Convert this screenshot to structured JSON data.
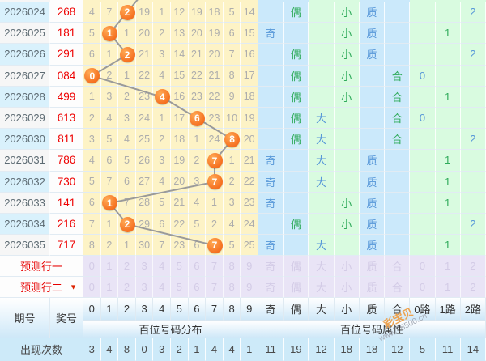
{
  "table": {
    "columns": {
      "period_label": "期号",
      "number_label": "奖号",
      "digit_labels": [
        "0",
        "1",
        "2",
        "3",
        "4",
        "5",
        "6",
        "7",
        "8",
        "9"
      ],
      "attr_labels": [
        "奇",
        "偶",
        "大",
        "小",
        "质",
        "合",
        "0路",
        "1路",
        "2路"
      ],
      "digit_span_label": "百位号码分布",
      "attr_span_label": "百位号码属性"
    },
    "prev_ball_digit": 3,
    "rows": [
      {
        "period": "2026024",
        "number": "268",
        "cells": [
          "4",
          "7",
          "2",
          "19",
          "1",
          "12",
          "19",
          "18",
          "5",
          "14"
        ],
        "attrs": [
          "",
          "偶",
          "",
          "小",
          "质",
          "",
          "",
          "",
          "2"
        ]
      },
      {
        "period": "2026025",
        "number": "181",
        "cells": [
          "5",
          "1",
          "1",
          "20",
          "2",
          "13",
          "20",
          "19",
          "6",
          "15"
        ],
        "attrs": [
          "奇",
          "",
          "",
          "小",
          "质",
          "",
          "",
          "1",
          ""
        ]
      },
      {
        "period": "2026026",
        "number": "291",
        "cells": [
          "6",
          "1",
          "2",
          "21",
          "3",
          "14",
          "21",
          "20",
          "7",
          "16"
        ],
        "attrs": [
          "",
          "偶",
          "",
          "小",
          "质",
          "",
          "",
          "",
          "2"
        ]
      },
      {
        "period": "2026027",
        "number": "084",
        "cells": [
          "0",
          "2",
          "1",
          "22",
          "4",
          "15",
          "22",
          "21",
          "8",
          "17"
        ],
        "attrs": [
          "",
          "偶",
          "",
          "小",
          "",
          "合",
          "0",
          "",
          ""
        ]
      },
      {
        "period": "2026028",
        "number": "499",
        "cells": [
          "1",
          "3",
          "2",
          "23",
          "4",
          "16",
          "23",
          "22",
          "9",
          "18"
        ],
        "attrs": [
          "",
          "偶",
          "",
          "小",
          "",
          "合",
          "",
          "1",
          ""
        ]
      },
      {
        "period": "2026029",
        "number": "613",
        "cells": [
          "2",
          "4",
          "3",
          "24",
          "1",
          "17",
          "6",
          "23",
          "10",
          "19"
        ],
        "attrs": [
          "",
          "偶",
          "大",
          "",
          "",
          "合",
          "0",
          "",
          ""
        ]
      },
      {
        "period": "2026030",
        "number": "811",
        "cells": [
          "3",
          "5",
          "4",
          "25",
          "2",
          "18",
          "1",
          "24",
          "8",
          "20"
        ],
        "attrs": [
          "",
          "偶",
          "大",
          "",
          "",
          "合",
          "",
          "",
          "2"
        ]
      },
      {
        "period": "2026031",
        "number": "786",
        "cells": [
          "4",
          "6",
          "5",
          "26",
          "3",
          "19",
          "2",
          "7",
          "1",
          "21"
        ],
        "attrs": [
          "奇",
          "",
          "大",
          "",
          "质",
          "",
          "",
          "1",
          ""
        ]
      },
      {
        "period": "2026032",
        "number": "730",
        "cells": [
          "5",
          "7",
          "6",
          "27",
          "4",
          "20",
          "3",
          "7",
          "2",
          "22"
        ],
        "attrs": [
          "奇",
          "",
          "大",
          "",
          "质",
          "",
          "",
          "1",
          ""
        ]
      },
      {
        "period": "2026033",
        "number": "141",
        "cells": [
          "6",
          "1",
          "7",
          "28",
          "5",
          "21",
          "4",
          "1",
          "3",
          "23"
        ],
        "attrs": [
          "奇",
          "",
          "",
          "小",
          "质",
          "",
          "",
          "1",
          ""
        ]
      },
      {
        "period": "2026034",
        "number": "216",
        "cells": [
          "7",
          "1",
          "2",
          "29",
          "6",
          "22",
          "5",
          "2",
          "4",
          "24"
        ],
        "attrs": [
          "",
          "偶",
          "",
          "小",
          "质",
          "",
          "",
          "",
          "2"
        ]
      },
      {
        "period": "2026035",
        "number": "717",
        "cells": [
          "8",
          "2",
          "1",
          "30",
          "7",
          "23",
          "6",
          "7",
          "5",
          "25"
        ],
        "attrs": [
          "奇",
          "",
          "大",
          "",
          "质",
          "",
          "",
          "1",
          ""
        ]
      }
    ],
    "prediction_rows": [
      {
        "label": "预测行一",
        "has_arrow": false,
        "digits": [
          "0",
          "1",
          "2",
          "3",
          "4",
          "5",
          "6",
          "7",
          "8",
          "9"
        ],
        "attrs": [
          "奇",
          "偶",
          "大",
          "小",
          "质",
          "合",
          "0",
          "1",
          "2"
        ]
      },
      {
        "label": "预测行二",
        "has_arrow": true,
        "digits": [
          "0",
          "1",
          "2",
          "3",
          "4",
          "5",
          "6",
          "7",
          "8",
          "9"
        ],
        "attrs": [
          "奇",
          "偶",
          "大",
          "小",
          "质",
          "合",
          "0",
          "1",
          "2"
        ]
      }
    ],
    "counts": {
      "label": "出现次数",
      "digit_counts": [
        "3",
        "4",
        "8",
        "0",
        "3",
        "2",
        "1",
        "4",
        "4",
        "1"
      ],
      "attr_counts": [
        "11",
        "19",
        "12",
        "18",
        "18",
        "12",
        "5",
        "11",
        "14"
      ]
    }
  },
  "icons": {
    "down_arrow": "▼"
  },
  "watermark": {
    "brand": "彩宝贝",
    "url": "www.78500.cn"
  },
  "colors": {
    "period_row_blue": "#d9f1fc",
    "period_row_grey": "#f6f6f6",
    "number_bg": "#fdfdfd",
    "number_text": "#ee0000",
    "miss_bg": "#fdf3c6",
    "attr_bg_blue": "#cbe9fb",
    "attr_bg_green": "#d9fbe0",
    "attr_text_blue": "#5596d8",
    "attr_text_green": "#2fab5a",
    "ball_orange": "#f1570a",
    "line_grey": "#9a9a9a"
  }
}
